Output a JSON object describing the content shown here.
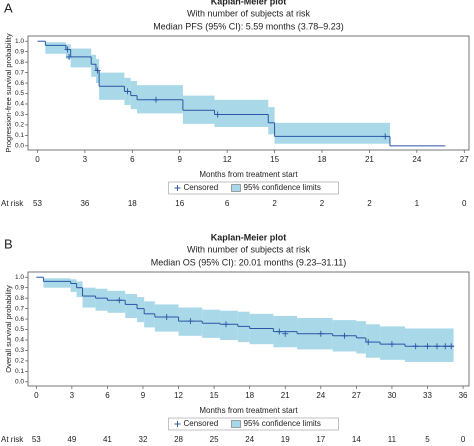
{
  "chart_data": [
    {
      "type": "kaplan-meier",
      "panel": "A",
      "title": "Kaplan-Meier plot",
      "subtitle": [
        "With number of subjects at risk",
        "Median PFS (95% CI): 5.59 months (3.78–9.23)"
      ],
      "x_label": "Months from treatment start",
      "y_label": "Progression-free survival probability",
      "xlim": [
        -0.6,
        27.3
      ],
      "xticks": [
        0,
        3,
        6,
        9,
        12,
        15,
        18,
        21,
        24,
        27
      ],
      "ylim": [
        -0.04,
        1.05
      ],
      "yticks": [
        {
          "value": 0,
          "label": "0.0"
        },
        0.1,
        0.2,
        0.3,
        0.4,
        0.5,
        0.6,
        0.7,
        0.8,
        0.9,
        {
          "value": 1,
          "label": "1.0"
        }
      ],
      "color": "#2a55a5",
      "band_color": "#a9d9e8",
      "x": [
        0,
        0.5,
        1.8,
        2.1,
        3.4,
        3.7,
        3.9,
        5.5,
        5.9,
        6.3,
        9.2,
        11.2,
        14.6,
        15.0,
        22.3
      ],
      "values": [
        1.0,
        0.96,
        0.92,
        0.85,
        0.78,
        0.72,
        0.57,
        0.52,
        0.48,
        0.44,
        0.34,
        0.3,
        0.22,
        0.09,
        0.0
      ],
      "x_end": 25.8,
      "lower": [
        1.0,
        0.88,
        0.83,
        0.75,
        0.66,
        0.6,
        0.44,
        0.39,
        0.35,
        0.31,
        0.21,
        0.18,
        0.11,
        0.02,
        null
      ],
      "upper": [
        1.0,
        0.99,
        0.97,
        0.93,
        0.87,
        0.83,
        0.7,
        0.65,
        0.62,
        0.58,
        0.48,
        0.44,
        0.37,
        0.22,
        null
      ],
      "censored": {
        "name": "Censored",
        "x": [
          1.9,
          2.0,
          3.8,
          5.7,
          7.5,
          11.4,
          22.0
        ],
        "y": [
          0.92,
          0.85,
          0.72,
          0.52,
          0.44,
          0.3,
          0.09
        ]
      },
      "band_name": "95% confidence limits",
      "at_risk_label": "At risk",
      "at_risk": [
        53,
        36,
        18,
        16,
        6,
        2,
        2,
        2,
        1,
        0
      ]
    },
    {
      "type": "kaplan-meier",
      "panel": "B",
      "title": "Kaplan-Meier plot",
      "subtitle": [
        "With number of subjects at risk",
        "Median OS (95% CI): 20.01 months (9.23–31.11)"
      ],
      "x_label": "Months from treatment start",
      "y_label": "Overall survival probability",
      "xlim": [
        -0.7,
        36.5
      ],
      "xticks": [
        0,
        3,
        6,
        9,
        12,
        15,
        18,
        21,
        24,
        27,
        30,
        33,
        36
      ],
      "ylim": [
        -0.04,
        1.05
      ],
      "yticks": [
        {
          "value": 0,
          "label": "0.0"
        },
        0.1,
        0.2,
        0.3,
        0.4,
        0.5,
        0.6,
        0.7,
        0.8,
        0.9,
        {
          "value": 1,
          "label": "1.0"
        }
      ],
      "color": "#2a55a5",
      "band_color": "#a9d9e8",
      "x": [
        0,
        0.6,
        2.9,
        3.4,
        3.9,
        5.0,
        6.0,
        7.5,
        8.5,
        9.1,
        10.0,
        12.0,
        14.0,
        15.5,
        17.0,
        18.0,
        20.0,
        22.0,
        25.0,
        27.0,
        27.8,
        29.0,
        31.1
      ],
      "values": [
        1.0,
        0.96,
        0.94,
        0.9,
        0.82,
        0.8,
        0.78,
        0.74,
        0.7,
        0.65,
        0.62,
        0.58,
        0.56,
        0.55,
        0.53,
        0.51,
        0.48,
        0.46,
        0.44,
        0.42,
        0.38,
        0.36,
        0.34
      ],
      "x_end": 35.2,
      "lower": [
        1.0,
        0.9,
        0.86,
        0.81,
        0.71,
        0.68,
        0.66,
        0.61,
        0.57,
        0.52,
        0.48,
        0.44,
        0.42,
        0.4,
        0.38,
        0.36,
        0.33,
        0.31,
        0.29,
        0.27,
        0.23,
        0.21,
        0.19
      ],
      "upper": [
        1.0,
        0.99,
        0.98,
        0.96,
        0.9,
        0.89,
        0.87,
        0.84,
        0.81,
        0.77,
        0.74,
        0.71,
        0.69,
        0.68,
        0.67,
        0.65,
        0.63,
        0.61,
        0.59,
        0.58,
        0.55,
        0.53,
        0.51
      ],
      "censored": {
        "name": "Censored",
        "x": [
          7.0,
          11.0,
          13.0,
          16.0,
          20.5,
          21.0,
          24.0,
          26.0,
          28.0,
          30.0,
          32.0,
          33.0,
          33.8,
          34.5,
          35.0
        ],
        "y": [
          0.78,
          0.62,
          0.58,
          0.55,
          0.48,
          0.46,
          0.46,
          0.44,
          0.38,
          0.36,
          0.34,
          0.34,
          0.34,
          0.34,
          0.34
        ]
      },
      "band_name": "95% confidence limits",
      "at_risk_label": "At risk",
      "at_risk": [
        53,
        49,
        41,
        32,
        28,
        25,
        24,
        19,
        17,
        14,
        11,
        5,
        0
      ]
    }
  ]
}
